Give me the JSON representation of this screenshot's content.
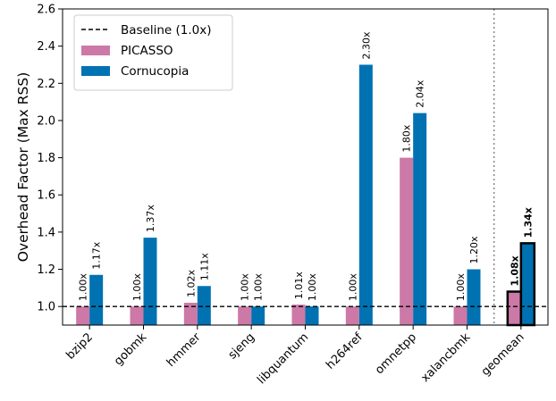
{
  "chart_data": {
    "type": "bar",
    "title": "",
    "xlabel": "",
    "ylabel": "Overhead Factor (Max RSS)",
    "ylim": [
      0.9,
      2.6
    ],
    "yticks": [
      "1.0",
      "1.2",
      "1.4",
      "1.6",
      "1.8",
      "2.0",
      "2.2",
      "2.4",
      "2.6"
    ],
    "categories": [
      "bzip2",
      "gobmk",
      "hmmer",
      "sjeng",
      "libquantum",
      "h264ref",
      "omnetpp",
      "xalancbmk",
      "geomean"
    ],
    "series": [
      {
        "name": "PICASSO",
        "color": "#cc79a7",
        "values": [
          1.0,
          1.0,
          1.02,
          1.0,
          1.01,
          1.0,
          1.8,
          1.0,
          1.08
        ],
        "labels": [
          "1.00x",
          "1.00x",
          "1.02x",
          "1.00x",
          "1.01x",
          "1.00x",
          "1.80x",
          "1.00x",
          "1.08x"
        ]
      },
      {
        "name": "Cornucopia",
        "color": "#0072b2",
        "values": [
          1.17,
          1.37,
          1.11,
          1.0,
          1.0,
          2.3,
          2.04,
          1.2,
          1.34
        ],
        "labels": [
          "1.17x",
          "1.37x",
          "1.11x",
          "1.00x",
          "1.00x",
          "2.30x",
          "2.04x",
          "1.20x",
          "1.34x"
        ]
      }
    ],
    "baseline": {
      "name": "Baseline (1.0x)",
      "value": 1.0,
      "style": "dashed",
      "color": "#000000"
    },
    "separator_style": "dotted",
    "highlighted_category": "geomean",
    "legend_position": "top-left",
    "grid": false
  }
}
